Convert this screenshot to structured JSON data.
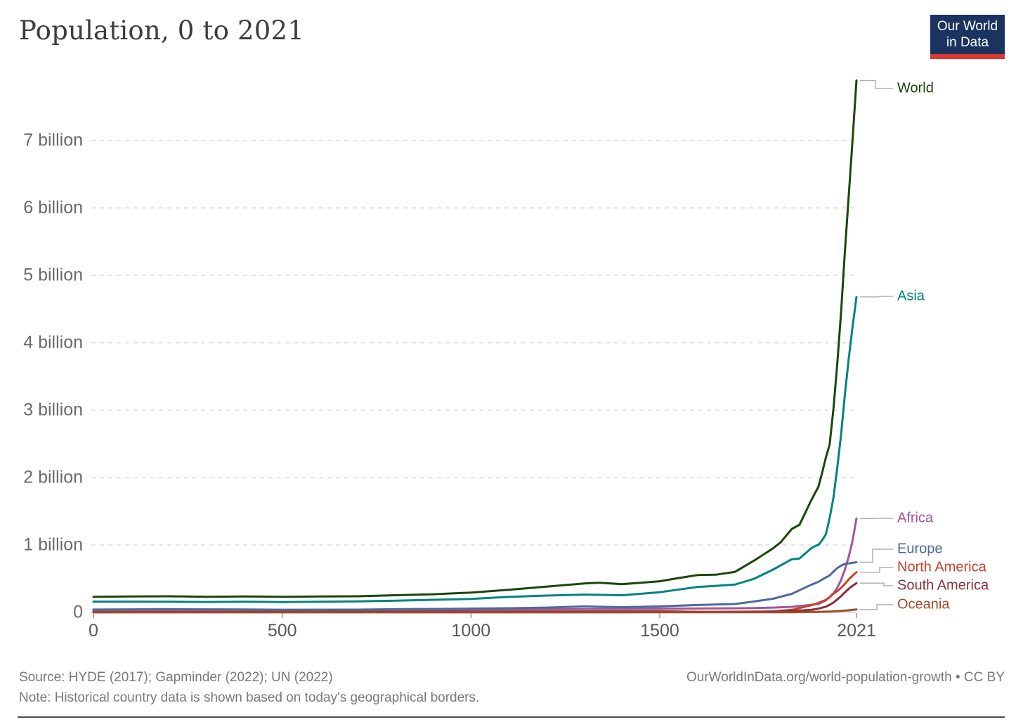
{
  "header": {
    "title": "Population, 0 to 2021",
    "logo": {
      "line1": "Our World",
      "line2": "in Data"
    }
  },
  "footer": {
    "source_text": "Source: HYDE (2017); Gapminder (2022); UN (2022)",
    "note_text": "Note: Historical country data is shown based on today's geographical borders.",
    "credit_text": "OurWorldInData.org/world-population-growth • CC BY"
  },
  "colors": {
    "grid": "#d4d4d4",
    "zero_axis": "#c8c8c8",
    "tick_mark": "#999999",
    "label_connector": "#b0b0b0"
  },
  "chart_data": {
    "type": "line",
    "title": "Population, 0 to 2021",
    "xlabel": "",
    "ylabel": "",
    "xlim": [
      0,
      2021
    ],
    "ylim": [
      0,
      7.95
    ],
    "grid": "horizontal-dashed",
    "legend_position": "line-end-labels-right",
    "x_ticks": [
      {
        "value": 0,
        "label": "0"
      },
      {
        "value": 500,
        "label": "500"
      },
      {
        "value": 1000,
        "label": "1000"
      },
      {
        "value": 1500,
        "label": "1500"
      },
      {
        "value": 2021,
        "label": "2021"
      }
    ],
    "y_ticks": [
      {
        "value": 0,
        "label": "0"
      },
      {
        "value": 1,
        "label": "1 billion"
      },
      {
        "value": 2,
        "label": "2 billion"
      },
      {
        "value": 3,
        "label": "3 billion"
      },
      {
        "value": 4,
        "label": "4 billion"
      },
      {
        "value": 5,
        "label": "5 billion"
      },
      {
        "value": 6,
        "label": "6 billion"
      },
      {
        "value": 7,
        "label": "7 billion"
      }
    ],
    "unit": "billion people",
    "series": [
      {
        "name": "World",
        "color": "#18470b",
        "points": [
          [
            0,
            0.232
          ],
          [
            100,
            0.236
          ],
          [
            200,
            0.24
          ],
          [
            300,
            0.232
          ],
          [
            400,
            0.237
          ],
          [
            500,
            0.232
          ],
          [
            600,
            0.236
          ],
          [
            700,
            0.24
          ],
          [
            800,
            0.255
          ],
          [
            900,
            0.27
          ],
          [
            1000,
            0.295
          ],
          [
            1100,
            0.335
          ],
          [
            1200,
            0.383
          ],
          [
            1300,
            0.43
          ],
          [
            1340,
            0.44
          ],
          [
            1400,
            0.42
          ],
          [
            1450,
            0.44
          ],
          [
            1500,
            0.462
          ],
          [
            1550,
            0.51
          ],
          [
            1600,
            0.554
          ],
          [
            1650,
            0.56
          ],
          [
            1700,
            0.603
          ],
          [
            1750,
            0.77
          ],
          [
            1800,
            0.95
          ],
          [
            1820,
            1.04
          ],
          [
            1850,
            1.24
          ],
          [
            1870,
            1.3
          ],
          [
            1900,
            1.65
          ],
          [
            1913,
            1.79
          ],
          [
            1920,
            1.86
          ],
          [
            1930,
            2.07
          ],
          [
            1940,
            2.3
          ],
          [
            1950,
            2.49
          ],
          [
            1960,
            3.02
          ],
          [
            1970,
            3.68
          ],
          [
            1980,
            4.44
          ],
          [
            1990,
            5.32
          ],
          [
            2000,
            6.14
          ],
          [
            2010,
            6.96
          ],
          [
            2021,
            7.89
          ]
        ]
      },
      {
        "name": "Asia",
        "color": "#00847e",
        "points": [
          [
            0,
            0.16
          ],
          [
            100,
            0.16
          ],
          [
            200,
            0.158
          ],
          [
            300,
            0.155
          ],
          [
            400,
            0.158
          ],
          [
            500,
            0.154
          ],
          [
            600,
            0.158
          ],
          [
            700,
            0.165
          ],
          [
            800,
            0.175
          ],
          [
            900,
            0.188
          ],
          [
            1000,
            0.2
          ],
          [
            1100,
            0.23
          ],
          [
            1200,
            0.25
          ],
          [
            1300,
            0.265
          ],
          [
            1400,
            0.255
          ],
          [
            1500,
            0.3
          ],
          [
            1600,
            0.378
          ],
          [
            1650,
            0.395
          ],
          [
            1700,
            0.415
          ],
          [
            1750,
            0.5
          ],
          [
            1800,
            0.635
          ],
          [
            1850,
            0.79
          ],
          [
            1870,
            0.8
          ],
          [
            1900,
            0.947
          ],
          [
            1913,
            0.99
          ],
          [
            1920,
            1.0
          ],
          [
            1930,
            1.07
          ],
          [
            1940,
            1.16
          ],
          [
            1950,
            1.4
          ],
          [
            1960,
            1.7
          ],
          [
            1970,
            2.14
          ],
          [
            1980,
            2.63
          ],
          [
            1990,
            3.21
          ],
          [
            2000,
            3.74
          ],
          [
            2010,
            4.21
          ],
          [
            2021,
            4.68
          ]
        ]
      },
      {
        "name": "Africa",
        "color": "#a2559c",
        "points": [
          [
            0,
            0.026
          ],
          [
            200,
            0.03
          ],
          [
            400,
            0.033
          ],
          [
            600,
            0.035
          ],
          [
            800,
            0.039
          ],
          [
            1000,
            0.042
          ],
          [
            1200,
            0.047
          ],
          [
            1400,
            0.052
          ],
          [
            1500,
            0.056
          ],
          [
            1600,
            0.058
          ],
          [
            1700,
            0.061
          ],
          [
            1750,
            0.065
          ],
          [
            1800,
            0.072
          ],
          [
            1850,
            0.083
          ],
          [
            1900,
            0.112
          ],
          [
            1920,
            0.125
          ],
          [
            1940,
            0.18
          ],
          [
            1950,
            0.228
          ],
          [
            1960,
            0.284
          ],
          [
            1970,
            0.366
          ],
          [
            1980,
            0.478
          ],
          [
            1990,
            0.631
          ],
          [
            2000,
            0.818
          ],
          [
            2010,
            1.044
          ],
          [
            2021,
            1.394
          ]
        ]
      },
      {
        "name": "Europe",
        "color": "#4c6a9c",
        "points": [
          [
            0,
            0.043
          ],
          [
            200,
            0.048
          ],
          [
            400,
            0.045
          ],
          [
            500,
            0.041
          ],
          [
            700,
            0.042
          ],
          [
            800,
            0.048
          ],
          [
            900,
            0.052
          ],
          [
            1000,
            0.057
          ],
          [
            1100,
            0.062
          ],
          [
            1200,
            0.072
          ],
          [
            1250,
            0.08
          ],
          [
            1300,
            0.09
          ],
          [
            1350,
            0.083
          ],
          [
            1400,
            0.078
          ],
          [
            1450,
            0.083
          ],
          [
            1500,
            0.09
          ],
          [
            1600,
            0.11
          ],
          [
            1700,
            0.125
          ],
          [
            1750,
            0.163
          ],
          [
            1800,
            0.203
          ],
          [
            1850,
            0.276
          ],
          [
            1900,
            0.408
          ],
          [
            1920,
            0.453
          ],
          [
            1940,
            0.52
          ],
          [
            1950,
            0.549
          ],
          [
            1960,
            0.605
          ],
          [
            1970,
            0.657
          ],
          [
            1980,
            0.694
          ],
          [
            1990,
            0.721
          ],
          [
            2000,
            0.726
          ],
          [
            2010,
            0.735
          ],
          [
            2021,
            0.745
          ]
        ]
      },
      {
        "name": "North America",
        "color": "#c8432c",
        "points": [
          [
            0,
            0.006
          ],
          [
            500,
            0.008
          ],
          [
            1000,
            0.011
          ],
          [
            1300,
            0.014
          ],
          [
            1400,
            0.016
          ],
          [
            1500,
            0.0175
          ],
          [
            1550,
            0.013
          ],
          [
            1600,
            0.0095
          ],
          [
            1650,
            0.0065
          ],
          [
            1700,
            0.0055
          ],
          [
            1750,
            0.0065
          ],
          [
            1800,
            0.0155
          ],
          [
            1850,
            0.039
          ],
          [
            1900,
            0.105
          ],
          [
            1920,
            0.142
          ],
          [
            1940,
            0.185
          ],
          [
            1950,
            0.227
          ],
          [
            1960,
            0.277
          ],
          [
            1970,
            0.316
          ],
          [
            1980,
            0.365
          ],
          [
            1990,
            0.421
          ],
          [
            2000,
            0.486
          ],
          [
            2010,
            0.542
          ],
          [
            2021,
            0.597
          ]
        ]
      },
      {
        "name": "South America",
        "color": "#883039",
        "points": [
          [
            0,
            0.0045
          ],
          [
            500,
            0.007
          ],
          [
            1000,
            0.01
          ],
          [
            1300,
            0.0135
          ],
          [
            1400,
            0.0145
          ],
          [
            1500,
            0.0155
          ],
          [
            1550,
            0.011
          ],
          [
            1600,
            0.0085
          ],
          [
            1700,
            0.01
          ],
          [
            1750,
            0.011
          ],
          [
            1800,
            0.0145
          ],
          [
            1850,
            0.022
          ],
          [
            1900,
            0.038
          ],
          [
            1920,
            0.056
          ],
          [
            1940,
            0.085
          ],
          [
            1950,
            0.114
          ],
          [
            1960,
            0.147
          ],
          [
            1970,
            0.192
          ],
          [
            1980,
            0.241
          ],
          [
            1990,
            0.296
          ],
          [
            2000,
            0.349
          ],
          [
            2010,
            0.393
          ],
          [
            2021,
            0.434
          ]
        ]
      },
      {
        "name": "Oceania",
        "color": "#a04b28",
        "points": [
          [
            0,
            0.0012
          ],
          [
            500,
            0.0013
          ],
          [
            1000,
            0.0015
          ],
          [
            1500,
            0.002
          ],
          [
            1800,
            0.002
          ],
          [
            1850,
            0.0025
          ],
          [
            1900,
            0.006
          ],
          [
            1920,
            0.0085
          ],
          [
            1940,
            0.011
          ],
          [
            1950,
            0.013
          ],
          [
            1960,
            0.016
          ],
          [
            1970,
            0.02
          ],
          [
            1980,
            0.023
          ],
          [
            1990,
            0.027
          ],
          [
            2000,
            0.031
          ],
          [
            2010,
            0.037
          ],
          [
            2021,
            0.0437
          ]
        ]
      }
    ]
  }
}
